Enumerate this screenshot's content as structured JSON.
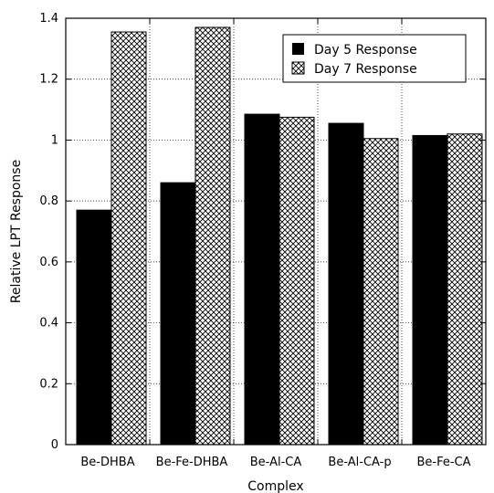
{
  "chart_data": {
    "type": "bar",
    "title": "",
    "xlabel": "Complex",
    "ylabel": "Relative LPT Response",
    "categories": [
      "Be-DHBA",
      "Be-Fe-DHBA",
      "Be-Al-CA",
      "Be-Al-CA-p",
      "Be-Fe-CA"
    ],
    "series": [
      {
        "name": "Day 5 Response",
        "values": [
          0.77,
          0.86,
          1.085,
          1.055,
          1.015
        ],
        "fill": "solid",
        "color": "#000000"
      },
      {
        "name": "Day 7 Response",
        "values": [
          1.355,
          1.37,
          1.075,
          1.005,
          1.02
        ],
        "fill": "crosshatch",
        "color": "#000000"
      }
    ],
    "ylim": [
      0,
      1.4
    ],
    "yticks": [
      "0",
      "0.2",
      "0.4",
      "0.6",
      "0.8",
      "1",
      "1.2",
      "1.4"
    ],
    "grid": true,
    "grid_style": "dotted",
    "legend_position": "top-right"
  }
}
